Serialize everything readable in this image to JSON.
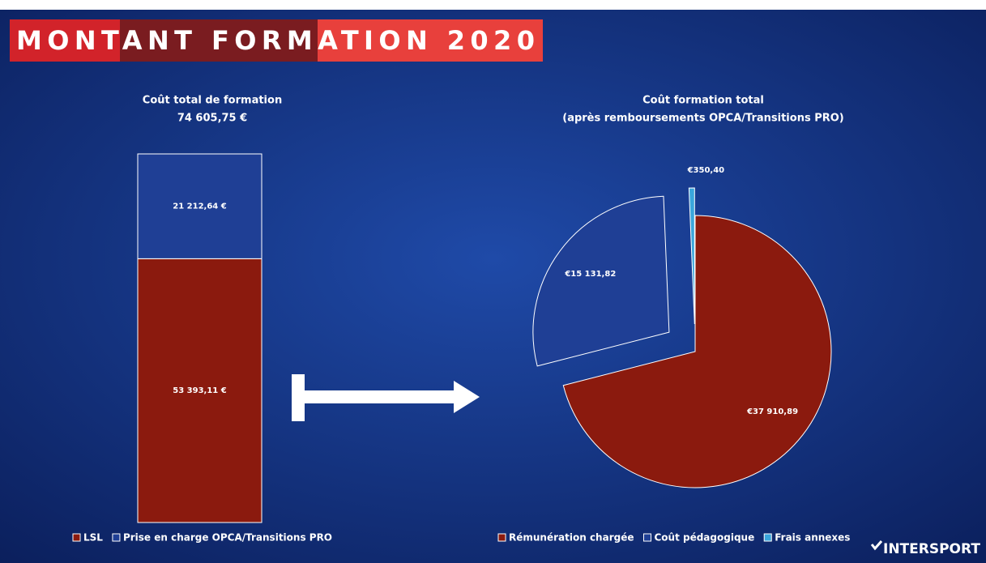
{
  "title": "MONTANT FORMATION 2020",
  "logo": "INTERSPORT",
  "chart_data": [
    {
      "type": "stacked-bar",
      "title": "Coût total de formation",
      "subtitle": "74 605,75 €",
      "categories": [
        null
      ],
      "series": [
        {
          "name": "LSL",
          "color": "#8b1a0e",
          "values": [
            53393.11
          ],
          "value_labels": [
            "53 393,11 €"
          ]
        },
        {
          "name": "Prise en charge OPCA/Transitions PRO",
          "color": "#1f3f95",
          "values": [
            21212.64
          ],
          "value_labels": [
            "21 212,64 €"
          ]
        }
      ]
    },
    {
      "type": "pie",
      "title": "Coût formation total",
      "subtitle": "(après remboursements OPCA/Transitions PRO)",
      "categories": [
        "Rémunération chargée",
        "Coût pédagogique",
        "Frais annexes"
      ],
      "values": [
        37910.89,
        15131.82,
        350.4
      ],
      "value_labels": [
        "€37 910,89",
        "€15 131,82",
        "€350,40"
      ],
      "colors": [
        "#8b1a0e",
        "#1f3f95",
        "#3aa6dc"
      ]
    }
  ]
}
